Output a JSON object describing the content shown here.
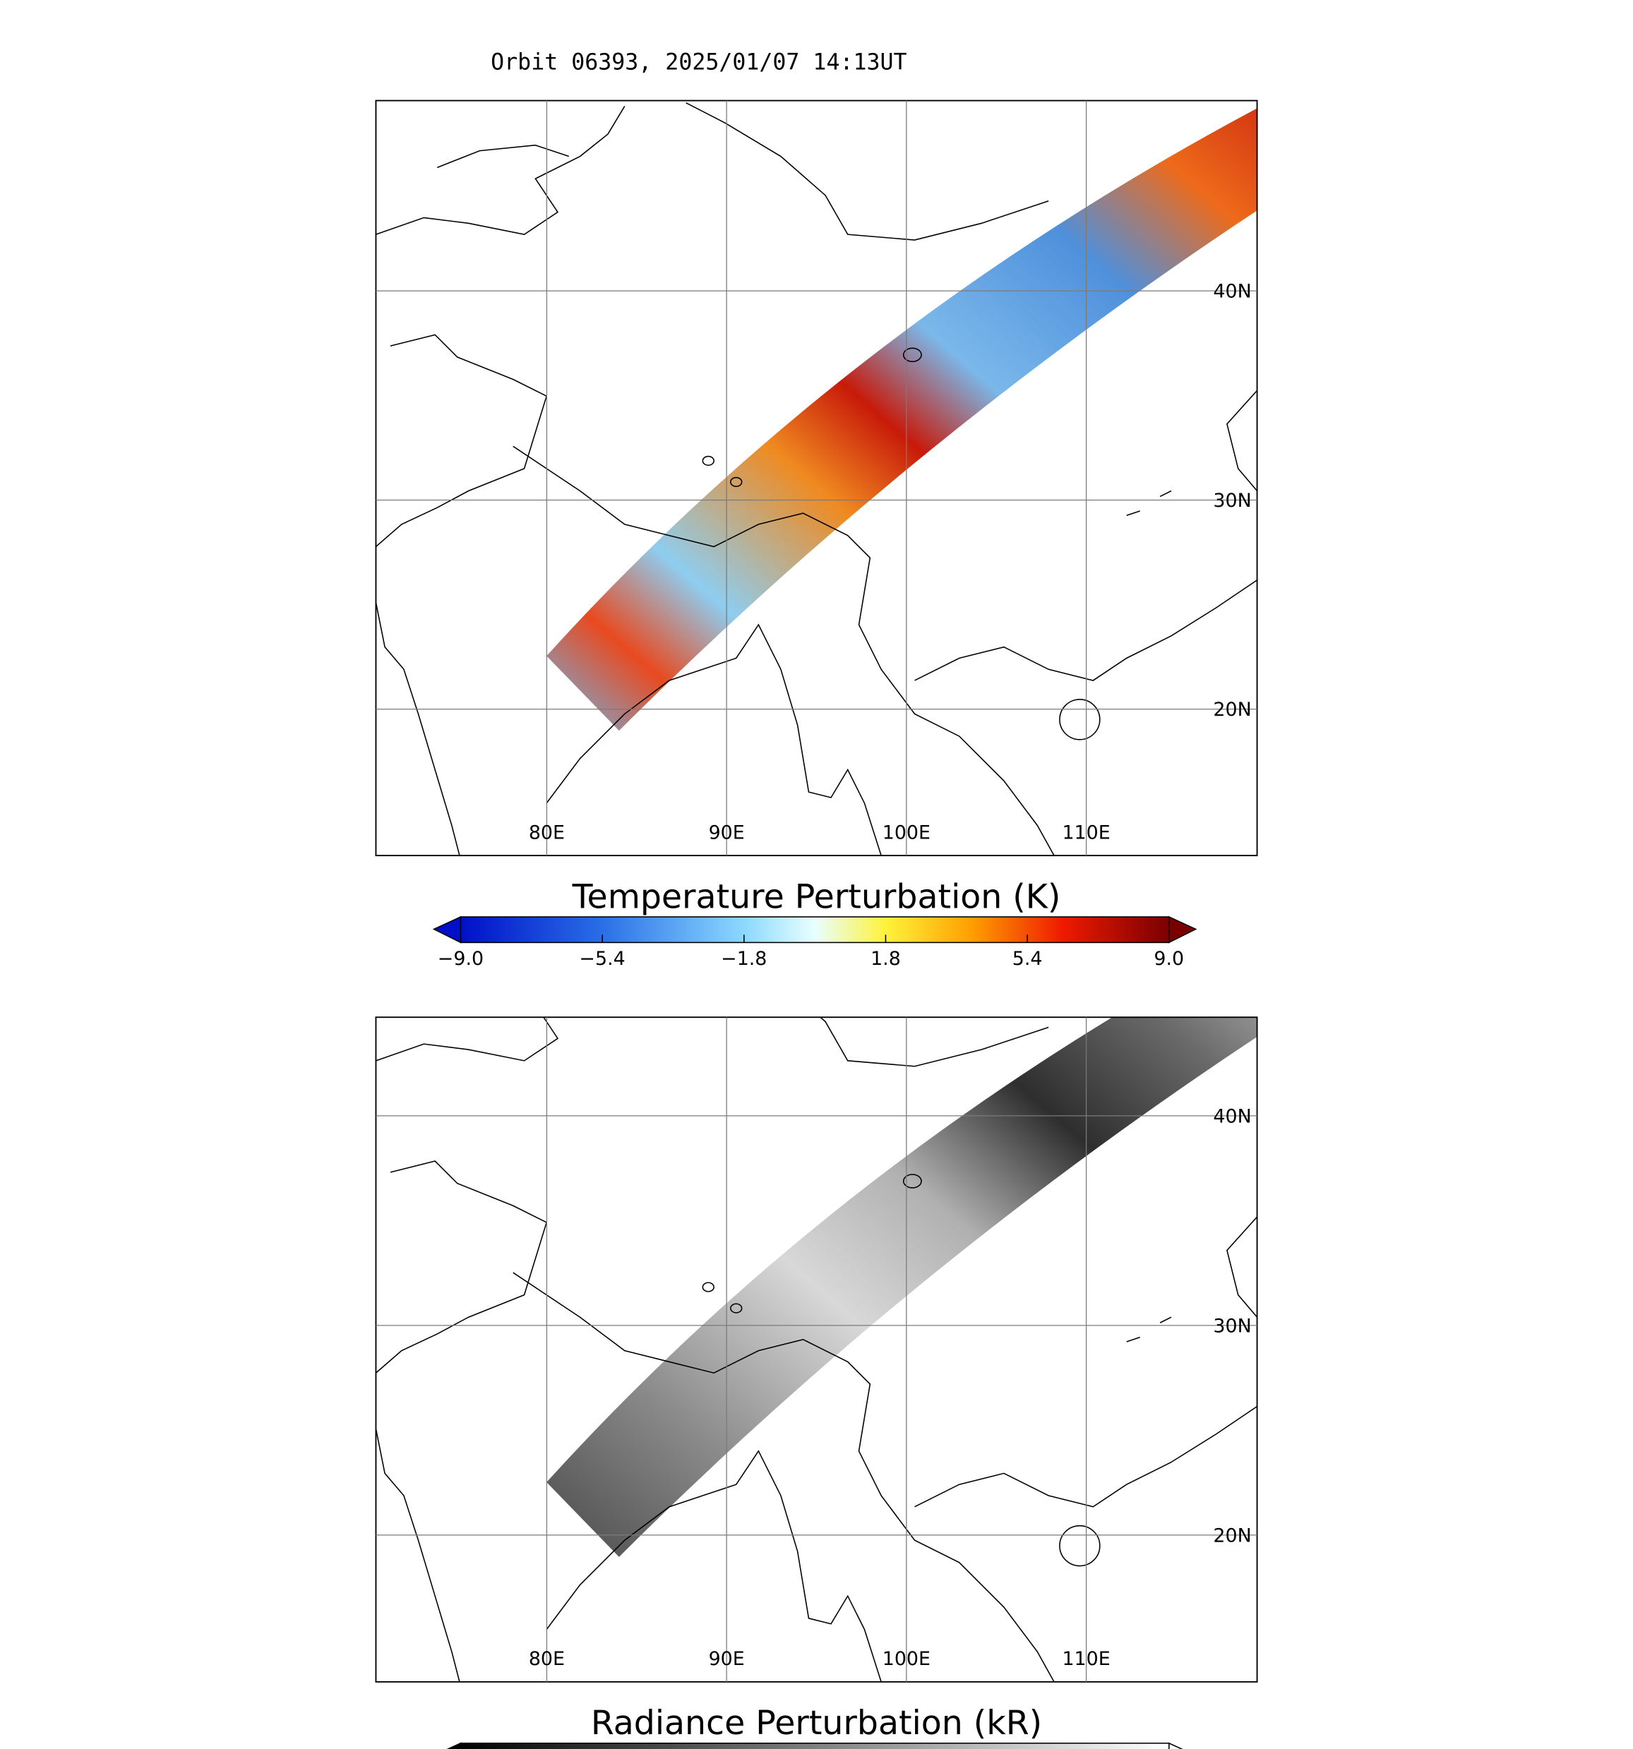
{
  "title": "Orbit 06393, 2025/01/07 14:13UT",
  "panels": [
    {
      "lonlim": [
        70.5,
        119.5
      ],
      "latlim": [
        13,
        49.1
      ],
      "lonticks": [
        {
          "value": 80,
          "label": "80E"
        },
        {
          "value": 90,
          "label": "90E"
        },
        {
          "value": 100,
          "label": "100E"
        },
        {
          "value": 110,
          "label": "110E"
        }
      ],
      "latticks": [
        {
          "value": 20,
          "label": "20N"
        },
        {
          "value": 30,
          "label": "30N"
        },
        {
          "value": 40,
          "label": "40N"
        }
      ]
    },
    {
      "lonlim": [
        70.5,
        119.5
      ],
      "latlim": [
        13,
        44.7
      ],
      "lonticks": [
        {
          "value": 80,
          "label": "80E"
        },
        {
          "value": 90,
          "label": "90E"
        },
        {
          "value": 100,
          "label": "100E"
        },
        {
          "value": 110,
          "label": "110E"
        }
      ],
      "latticks": [
        {
          "value": 20,
          "label": "20N"
        },
        {
          "value": 30,
          "label": "30N"
        },
        {
          "value": 40,
          "label": "40N"
        }
      ]
    }
  ],
  "colorbars": [
    {
      "title": "Temperature Perturbation (K)",
      "lim": [
        -9,
        9
      ],
      "ticks": [
        {
          "value": -9,
          "label": "−9.0"
        },
        {
          "value": -5.4,
          "label": "−5.4"
        },
        {
          "value": -1.8,
          "label": "−1.8"
        },
        1.8,
        5.4,
        {
          "value": 9,
          "label": "9.0"
        }
      ]
    },
    {
      "title": "Radiance Perturbation (kR)"
    }
  ]
}
